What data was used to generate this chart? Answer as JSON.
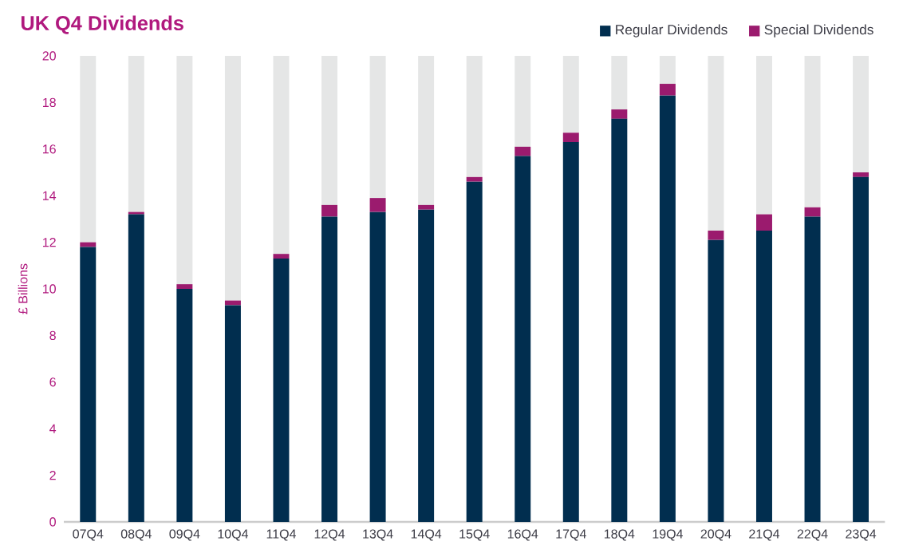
{
  "chart_data": {
    "type": "bar",
    "title": "UK Q4 Dividends",
    "ylabel": "£ Billions",
    "stacked": true,
    "legend": "top right",
    "categories": [
      "07Q4",
      "08Q4",
      "09Q4",
      "10Q4",
      "11Q4",
      "12Q4",
      "13Q4",
      "14Q4",
      "15Q4",
      "16Q4",
      "17Q4",
      "18Q4",
      "19Q4",
      "20Q4",
      "21Q4",
      "22Q4",
      "23Q4"
    ],
    "ylim": [
      0,
      20
    ],
    "yticks": [
      0,
      2,
      4,
      6,
      8,
      10,
      12,
      14,
      16,
      18,
      20
    ],
    "series": [
      {
        "name": "Regular Dividends",
        "color": "#012e4f",
        "values": [
          11.8,
          13.2,
          10.0,
          9.3,
          11.3,
          13.1,
          13.3,
          13.4,
          14.6,
          15.7,
          16.3,
          17.3,
          18.3,
          12.1,
          12.5,
          13.1,
          14.8
        ]
      },
      {
        "name": "Special Dividends",
        "color": "#9b1b6e",
        "values": [
          0.2,
          0.1,
          0.2,
          0.2,
          0.2,
          0.5,
          0.6,
          0.2,
          0.2,
          0.4,
          0.4,
          0.4,
          0.5,
          0.4,
          0.7,
          0.4,
          0.2
        ]
      },
      {
        "color": "#e5e6e6",
        "values": [
          8.0,
          6.7,
          9.8,
          10.5,
          8.5,
          6.4,
          6.1,
          6.4,
          5.2,
          3.9,
          3.3,
          2.3,
          1.2,
          7.5,
          6.8,
          6.5,
          5.0
        ]
      }
    ]
  }
}
